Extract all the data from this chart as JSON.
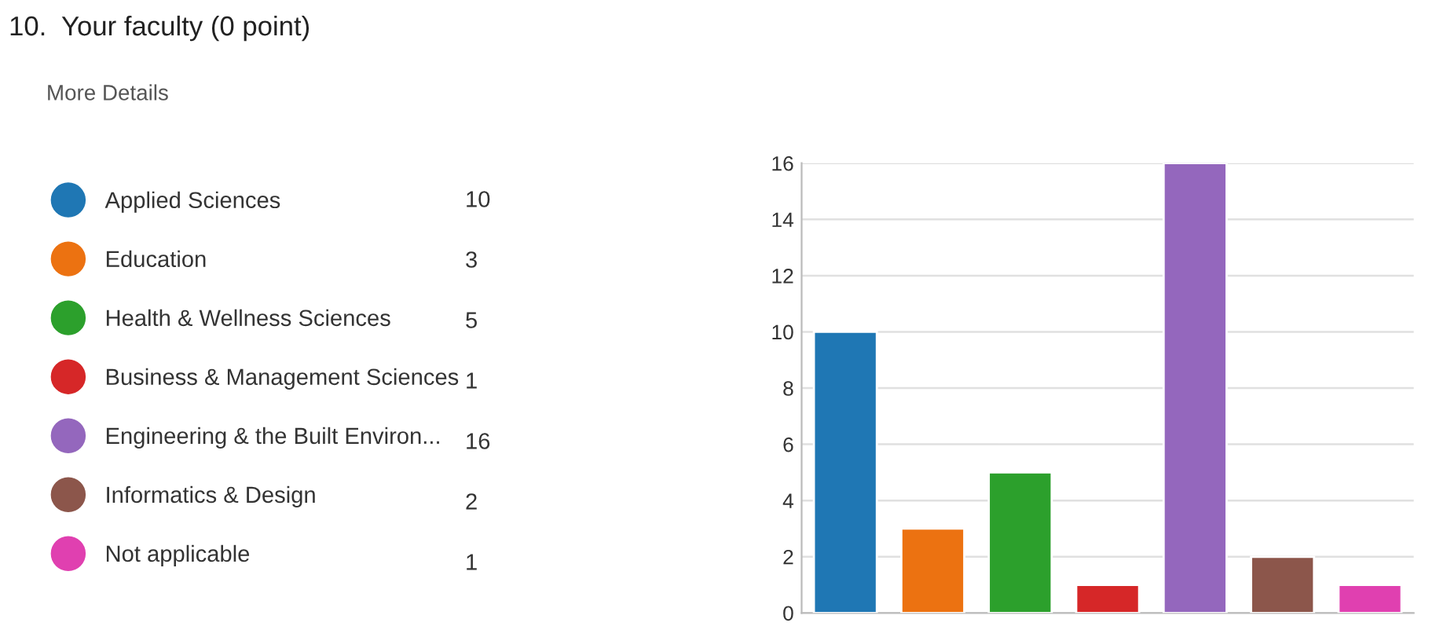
{
  "chart_data": {
    "type": "bar",
    "title": "10.  Your faculty (0 point)",
    "annotations": [
      "More Details",
      "10",
      "3",
      "5",
      "1",
      "16",
      "2",
      "1"
    ],
    "categories": [
      null
    ],
    "series": [
      {
        "name": "Applied Sciences",
        "color": "#1f77b4",
        "values": [
          10
        ]
      },
      {
        "name": "Education",
        "color": "#ec7211",
        "values": [
          3
        ]
      },
      {
        "name": "Health & Wellness Sciences",
        "color": "#2ca02c",
        "values": [
          5
        ]
      },
      {
        "name": "Business & Management Sciences",
        "color": "#d62728",
        "values": [
          1
        ]
      },
      {
        "name": "Engineering & the Built Environ...",
        "color": "#9467bd",
        "values": [
          16
        ]
      },
      {
        "name": "Informatics & Design",
        "color": "#8c564b",
        "values": [
          2
        ]
      },
      {
        "name": "Not applicable",
        "color": "#e040b0",
        "values": [
          1
        ]
      }
    ],
    "ylim": [
      0,
      16
    ],
    "yticks": [
      0,
      2,
      4,
      6,
      8,
      10,
      12,
      14,
      16
    ],
    "grid": "y",
    "legend": "left",
    "tick_labels": "y"
  }
}
